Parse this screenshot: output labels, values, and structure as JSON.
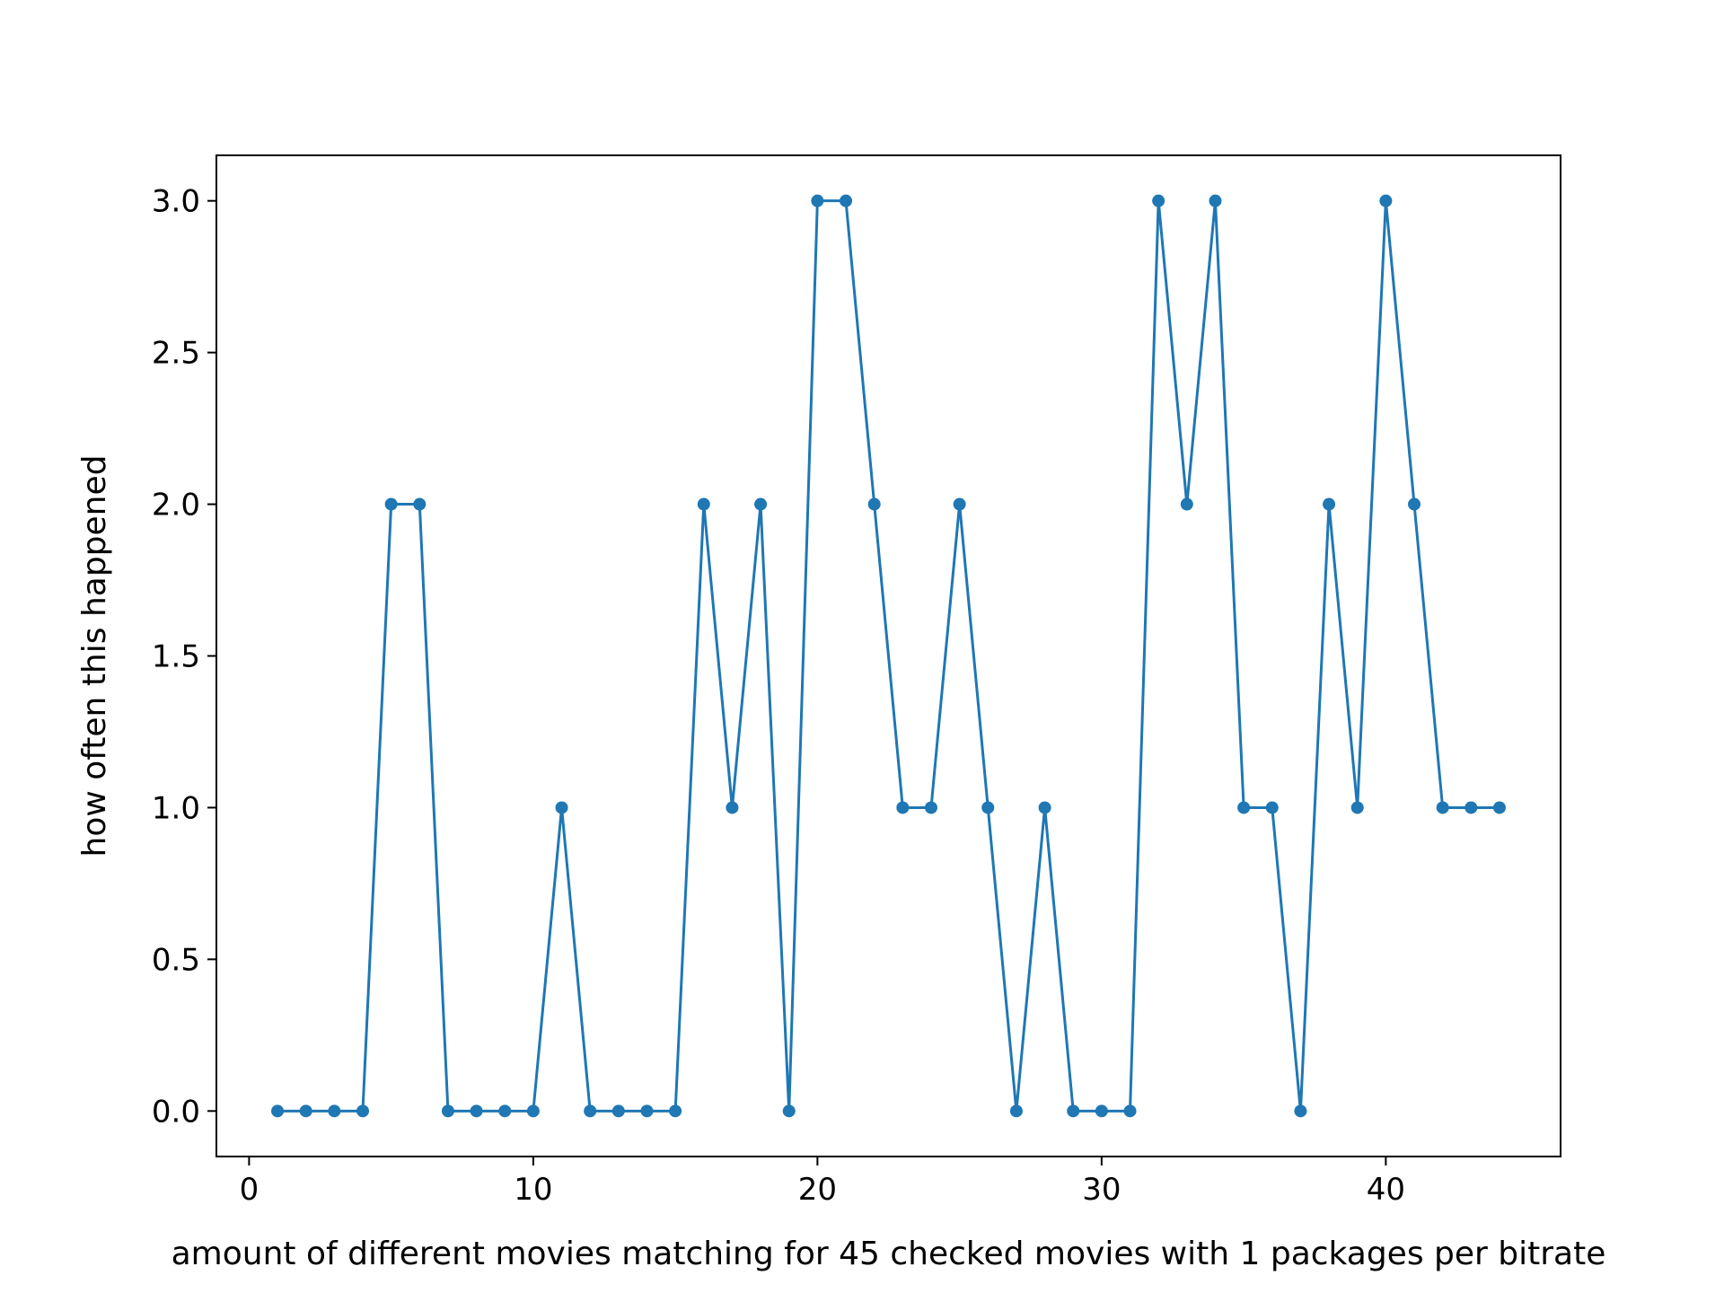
{
  "chart_data": {
    "type": "line",
    "title": "",
    "xlabel": "amount of different movies matching for 45 checked movies with 1 packages per bitrate",
    "ylabel": "how often this happened",
    "x": [
      1,
      2,
      3,
      4,
      5,
      6,
      7,
      8,
      9,
      10,
      11,
      12,
      13,
      14,
      15,
      16,
      17,
      18,
      19,
      20,
      21,
      22,
      23,
      24,
      25,
      26,
      27,
      28,
      29,
      30,
      31,
      32,
      33,
      34,
      35,
      36,
      37,
      38,
      39,
      40,
      41,
      42,
      43,
      44
    ],
    "series": [
      {
        "values": [
          0,
          0,
          0,
          0,
          2,
          2,
          0,
          0,
          0,
          0,
          1,
          0,
          0,
          0,
          0,
          2,
          1,
          2,
          0,
          3,
          3,
          2,
          1,
          1,
          2,
          1,
          0,
          1,
          0,
          0,
          0,
          3,
          2,
          3,
          1,
          1,
          0,
          2,
          1,
          3,
          2,
          1,
          1,
          1
        ]
      }
    ],
    "xlim": [
      -1.15,
      46.15
    ],
    "ylim": [
      -0.15,
      3.15
    ],
    "xticks": [
      0,
      10,
      20,
      30,
      40
    ],
    "xtick_labels": [
      "0",
      "10",
      "20",
      "30",
      "40"
    ],
    "yticks": [
      0.0,
      0.5,
      1.0,
      1.5,
      2.0,
      2.5,
      3.0
    ],
    "ytick_labels": [
      "0.0",
      "0.5",
      "1.0",
      "1.5",
      "2.0",
      "2.5",
      "3.0"
    ],
    "grid": false,
    "legend": "none",
    "line_color": "#1f77b4",
    "marker": "circle"
  }
}
